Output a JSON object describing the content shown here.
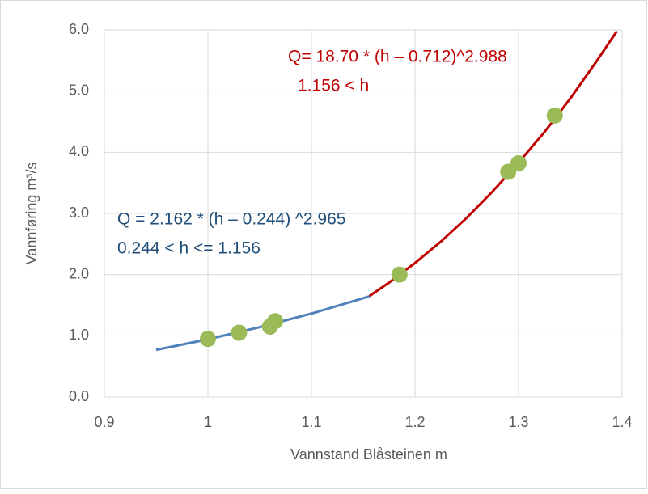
{
  "chart_data": {
    "type": "scatter",
    "x_label": "Vannstand Blåsteinen m",
    "y_label": "Vannføring m³/s",
    "xlim": [
      0.9,
      1.4
    ],
    "ylim": [
      0,
      6
    ],
    "xticks": [
      0.9,
      1,
      1.1,
      1.2,
      1.3,
      1.4
    ],
    "yticks": [
      {
        "value": 0,
        "label": "0.0"
      },
      {
        "value": 1,
        "label": "1.0"
      },
      {
        "value": 2,
        "label": "2.0"
      },
      {
        "value": 3,
        "label": "3.0"
      },
      {
        "value": 4,
        "label": "4.0"
      },
      {
        "value": 5,
        "label": "5.0"
      },
      {
        "value": 6,
        "label": "6.0"
      }
    ],
    "grid": true,
    "points": {
      "color": "#9bbb59",
      "x": [
        1.0,
        1.03,
        1.06,
        1.065,
        1.185,
        1.29,
        1.3,
        1.335
      ],
      "values": [
        0.95,
        1.05,
        1.15,
        1.24,
        2.0,
        3.68,
        3.82,
        4.6
      ]
    },
    "curves": [
      {
        "color": "#4f81bd",
        "x": [
          0.95,
          1.0,
          1.05,
          1.1,
          1.156
        ],
        "values": [
          0.77,
          0.943,
          1.141,
          1.364,
          1.645
        ]
      },
      {
        "color": "#c00000",
        "x": [
          1.156,
          1.175,
          1.2,
          1.225,
          1.25,
          1.275,
          1.3,
          1.325,
          1.35,
          1.375,
          1.395
        ],
        "values": [
          1.65,
          1.87,
          2.19,
          2.54,
          2.93,
          3.36,
          3.83,
          4.33,
          4.88,
          5.48,
          5.98
        ]
      }
    ],
    "annotations": [
      {
        "color": "#1f4e79",
        "lines": [
          "Q = 2.162 * (h – 0.244) ^2.965",
          "0.244 < h <= 1.156"
        ]
      },
      {
        "color": "#c00000",
        "lines": [
          "Q= 18.70 * (h – 0.712)^2.988",
          "1.156 < h"
        ]
      }
    ]
  }
}
